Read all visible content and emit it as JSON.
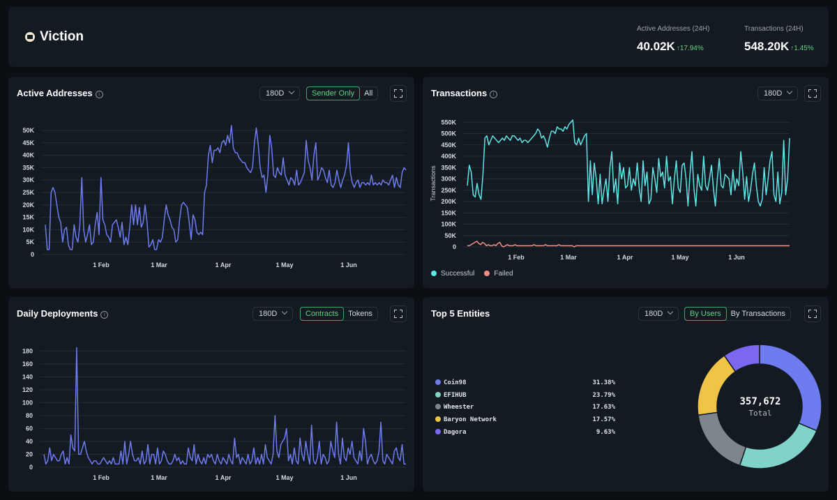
{
  "header": {
    "brand": "Viction",
    "stats": [
      {
        "label": "Active Addresses (24H)",
        "value": "40.02K",
        "delta": "17.94%"
      },
      {
        "label": "Transactions (24H)",
        "value": "548.20K",
        "delta": "1.45%"
      }
    ]
  },
  "panels": {
    "active": {
      "title": "Active Addresses",
      "range": "180D",
      "toggle": [
        "Sender Only",
        "All"
      ]
    },
    "tx": {
      "title": "Transactions",
      "range": "180D",
      "ylabel": "Transactions",
      "legend": [
        "Successful",
        "Failed"
      ]
    },
    "deploy": {
      "title": "Daily Deployments",
      "range": "180D",
      "toggle": [
        "Contracts",
        "Tokens"
      ]
    },
    "top": {
      "title": "Top 5 Entities",
      "range": "180D",
      "toggle": [
        "By Users",
        "By Transactions"
      ],
      "total": "357,672",
      "total_label": "Total"
    }
  },
  "colors": {
    "accent": "#6f7cf0",
    "success": "#62d284",
    "tx_success": "#5fe6e6",
    "tx_failed": "#f08f86"
  },
  "chart_data": [
    {
      "type": "line",
      "title": "Active Addresses",
      "x_ticks": [
        "1 Feb",
        "1 Mar",
        "1 Apr",
        "1 May",
        "1 Jun"
      ],
      "y_ticks": [
        "0",
        "5K",
        "10K",
        "15K",
        "20K",
        "25K",
        "30K",
        "35K",
        "40K",
        "45K",
        "50K"
      ],
      "ylim": [
        0,
        50000
      ],
      "series": [
        {
          "values": [
            12000,
            2000,
            2000,
            25000,
            27000,
            25000,
            20000,
            15000,
            13000,
            5000,
            10000,
            11000,
            4000,
            2000,
            2000,
            12000,
            7000,
            5000,
            12000,
            31000,
            10000,
            5000,
            8000,
            12000,
            4000,
            5000,
            12000,
            17000,
            8000,
            31000,
            14000,
            12000,
            8000,
            7000,
            5000,
            12000,
            13000,
            14000,
            11000,
            7000,
            13000,
            4000,
            7000,
            4000,
            11000,
            20000,
            12000,
            20000,
            12000,
            19000,
            11000,
            13000,
            20000,
            13000,
            3000,
            4000,
            6000,
            2000,
            2000,
            6000,
            5000,
            7000,
            14000,
            20000,
            16000,
            14000,
            11000,
            10000,
            5000,
            6000,
            14000,
            20000,
            21000,
            20000,
            19000,
            13000,
            6000,
            16000,
            14000,
            9000,
            8000,
            9000,
            8000,
            25000,
            28000,
            40000,
            44000,
            37000,
            42000,
            42000,
            43000,
            41000,
            45000,
            46000,
            44000,
            48000,
            45000,
            52000,
            43000,
            41000,
            41000,
            39000,
            38000,
            37000,
            37000,
            35000,
            34000,
            33000,
            35000,
            45000,
            51000,
            44000,
            35000,
            31000,
            32000,
            25000,
            32000,
            48000,
            43000,
            32000,
            31000,
            35000,
            33000,
            32000,
            39000,
            32000,
            30000,
            28000,
            31000,
            30000,
            28000,
            34000,
            28000,
            29000,
            31000,
            33000,
            46000,
            38000,
            35000,
            30000,
            40000,
            45000,
            30000,
            32000,
            35000,
            34000,
            31000,
            29000,
            34000,
            28000,
            27000,
            29000,
            34000,
            30000,
            27000,
            30000,
            32000,
            36000,
            45000,
            33000,
            29000,
            27000,
            29000,
            30000,
            27000,
            29000,
            29000,
            28000,
            29000,
            28000,
            32000,
            28000,
            29000,
            28000,
            29000,
            28000,
            30000,
            29000,
            29000,
            28000,
            30000,
            32000,
            27000,
            31000,
            28000,
            27000,
            33000,
            35000,
            34000
          ]
        }
      ]
    },
    {
      "type": "line",
      "title": "Transactions",
      "ylabel": "Transactions",
      "x_ticks": [
        "1 Feb",
        "1 Mar",
        "1 Apr",
        "1 May",
        "1 Jun"
      ],
      "y_ticks": [
        "0",
        "50K",
        "100K",
        "150K",
        "200K",
        "250K",
        "300K",
        "350K",
        "400K",
        "450K",
        "500K",
        "550K"
      ],
      "ylim": [
        0,
        560000
      ],
      "series": [
        {
          "name": "Successful",
          "values": [
            270000,
            360000,
            330000,
            230000,
            220000,
            280000,
            230000,
            210000,
            320000,
            480000,
            490000,
            450000,
            470000,
            490000,
            480000,
            470000,
            460000,
            470000,
            480000,
            470000,
            490000,
            480000,
            470000,
            490000,
            490000,
            480000,
            470000,
            480000,
            460000,
            470000,
            470000,
            460000,
            470000,
            480000,
            490000,
            500000,
            520000,
            510000,
            480000,
            490000,
            470000,
            440000,
            480000,
            510000,
            510000,
            500000,
            530000,
            520000,
            520000,
            510000,
            530000,
            520000,
            540000,
            550000,
            560000,
            460000,
            450000,
            480000,
            450000,
            470000,
            490000,
            500000,
            200000,
            380000,
            230000,
            370000,
            300000,
            190000,
            320000,
            190000,
            250000,
            300000,
            200000,
            350000,
            420000,
            240000,
            300000,
            190000,
            370000,
            300000,
            350000,
            260000,
            270000,
            350000,
            250000,
            300000,
            270000,
            370000,
            260000,
            200000,
            380000,
            270000,
            330000,
            190000,
            210000,
            350000,
            300000,
            240000,
            390000,
            310000,
            330000,
            260000,
            400000,
            290000,
            310000,
            190000,
            300000,
            380000,
            260000,
            240000,
            360000,
            370000,
            300000,
            180000,
            320000,
            420000,
            260000,
            180000,
            320000,
            270000,
            250000,
            400000,
            270000,
            250000,
            300000,
            360000,
            260000,
            180000,
            300000,
            390000,
            270000,
            260000,
            320000,
            310000,
            300000,
            230000,
            340000,
            250000,
            300000,
            270000,
            420000,
            330000,
            210000,
            310000,
            200000,
            250000,
            320000,
            370000,
            270000,
            200000,
            180000,
            210000,
            350000,
            230000,
            300000,
            380000,
            420000,
            230000,
            200000,
            330000,
            190000,
            240000,
            470000,
            230000,
            300000,
            480000
          ]
        },
        {
          "name": "Failed",
          "values": [
            5000,
            5000,
            10000,
            15000,
            20000,
            25000,
            15000,
            10000,
            20000,
            15000,
            5000,
            10000,
            5000,
            5000,
            10000,
            5000,
            15000,
            20000,
            5000,
            0,
            5000,
            10000,
            5000,
            5000,
            5000,
            10000,
            5000,
            5000,
            5000,
            5000,
            5000,
            5000,
            5000,
            5000,
            5000,
            10000,
            5000,
            5000,
            5000,
            5000,
            5000,
            10000,
            5000,
            5000,
            5000,
            5000,
            5000,
            5000,
            10000,
            5000,
            5000,
            5000,
            5000,
            5000,
            5000,
            5000,
            0,
            5000,
            5000,
            5000,
            5000,
            5000,
            5000,
            5000,
            5000,
            5000,
            5000,
            5000,
            5000,
            5000,
            5000,
            5000,
            5000,
            5000,
            5000,
            5000,
            5000,
            5000,
            5000,
            5000,
            5000,
            5000,
            5000,
            5000,
            5000,
            5000,
            5000,
            5000,
            5000,
            5000,
            5000,
            5000,
            5000,
            5000,
            5000,
            5000,
            5000,
            5000,
            5000,
            5000,
            5000,
            5000,
            5000,
            5000,
            5000,
            5000,
            5000,
            5000,
            5000,
            5000,
            5000,
            5000,
            5000,
            5000,
            5000,
            5000,
            5000,
            5000,
            5000,
            5000,
            5000,
            5000,
            5000,
            5000,
            5000,
            5000,
            5000,
            5000,
            5000,
            5000,
            5000,
            5000,
            5000,
            5000,
            5000,
            5000,
            5000,
            5000,
            5000,
            5000,
            5000,
            5000,
            5000,
            5000,
            5000,
            5000,
            5000,
            5000,
            5000,
            5000,
            5000,
            5000,
            5000,
            5000,
            5000,
            5000,
            5000,
            5000,
            5000,
            5000,
            5000,
            5000,
            5000,
            5000,
            5000,
            5000,
            5000,
            5000,
            5000,
            5000
          ]
        }
      ]
    },
    {
      "type": "line",
      "title": "Daily Deployments",
      "x_ticks": [
        "1 Feb",
        "1 Mar",
        "1 Apr",
        "1 May",
        "1 Jun"
      ],
      "y_ticks": [
        "0",
        "20",
        "40",
        "60",
        "80",
        "100",
        "120",
        "140",
        "160",
        "180"
      ],
      "ylim": [
        0,
        190
      ],
      "series": [
        {
          "values": [
            20,
            5,
            10,
            30,
            10,
            20,
            15,
            10,
            10,
            20,
            25,
            5,
            15,
            5,
            50,
            30,
            25,
            185,
            20,
            20,
            30,
            40,
            25,
            15,
            10,
            5,
            10,
            10,
            5,
            5,
            10,
            15,
            10,
            5,
            10,
            5,
            15,
            5,
            5,
            5,
            25,
            5,
            40,
            5,
            20,
            40,
            20,
            10,
            10,
            15,
            5,
            25,
            5,
            10,
            35,
            5,
            20,
            20,
            5,
            30,
            5,
            10,
            25,
            20,
            10,
            5,
            5,
            10,
            20,
            10,
            15,
            5,
            10,
            5,
            5,
            30,
            15,
            10,
            35,
            5,
            20,
            10,
            5,
            15,
            5,
            20,
            15,
            20,
            10,
            5,
            20,
            10,
            5,
            15,
            10,
            5,
            20,
            10,
            5,
            45,
            15,
            20,
            5,
            15,
            10,
            5,
            20,
            5,
            10,
            30,
            5,
            15,
            5,
            20,
            5,
            35,
            15,
            10,
            5,
            20,
            80,
            25,
            15,
            35,
            40,
            45,
            60,
            10,
            20,
            5,
            30,
            10,
            5,
            45,
            20,
            10,
            40,
            20,
            5,
            65,
            10,
            5,
            15,
            40,
            5,
            20,
            15,
            5,
            10,
            40,
            25,
            15,
            70,
            20,
            5,
            45,
            15,
            10,
            30,
            20,
            40,
            15,
            10,
            5,
            25,
            10,
            60,
            40,
            5,
            15,
            20,
            10,
            5,
            10,
            25,
            70,
            10,
            5,
            20,
            15,
            10,
            5,
            25,
            30,
            15,
            10,
            35,
            5,
            5
          ]
        }
      ]
    },
    {
      "type": "pie",
      "title": "Top 5 Entities",
      "categories": [
        "Coin98",
        "EFIHUB",
        "Wheester",
        "Baryon Network",
        "Dagora"
      ],
      "values": [
        31.38,
        23.79,
        17.63,
        17.57,
        9.63
      ],
      "labels": [
        "31.38%",
        "23.79%",
        "17.63%",
        "17.57%",
        "9.63%"
      ],
      "colors": [
        "#6f7cf0",
        "#7fd3c8",
        "#7f858c",
        "#f0c447",
        "#7b67f0"
      ]
    }
  ]
}
